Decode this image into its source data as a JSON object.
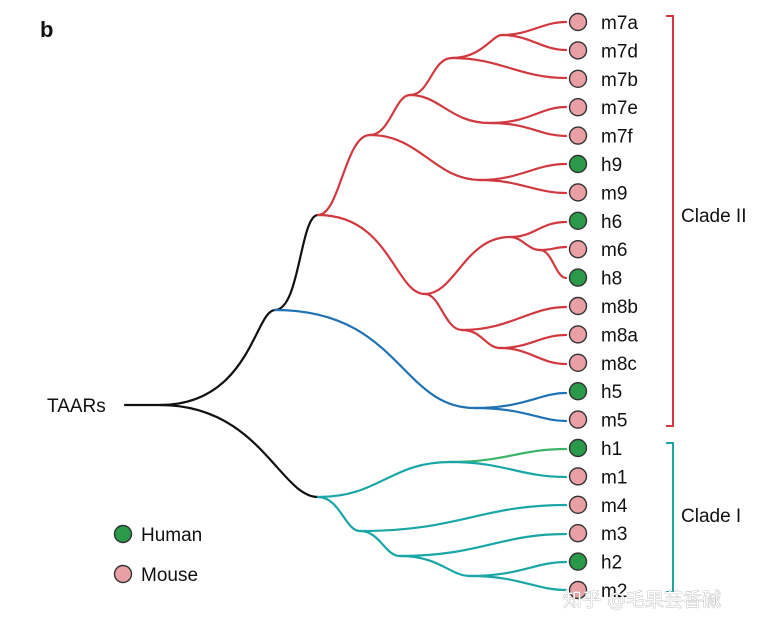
{
  "panel_label": "b",
  "root_label": "TAARs",
  "colors": {
    "trunk": "#111111",
    "clade2": "#d0393f",
    "blue": "#1f72b4",
    "clade1": "#1aa6a6",
    "human_fill": "#2a9a4a",
    "mouse_fill": "#e8a0a4",
    "node_stroke": "#333333",
    "clade2_bracket": "#d0393f",
    "clade1_bracket": "#1aa6a6"
  },
  "leaves": [
    {
      "label": "m7a",
      "species": "mouse"
    },
    {
      "label": "m7d",
      "species": "mouse"
    },
    {
      "label": "m7b",
      "species": "mouse"
    },
    {
      "label": "m7e",
      "species": "mouse"
    },
    {
      "label": "m7f",
      "species": "mouse"
    },
    {
      "label": "h9",
      "species": "human"
    },
    {
      "label": "m9",
      "species": "mouse"
    },
    {
      "label": "h6",
      "species": "human"
    },
    {
      "label": "m6",
      "species": "mouse"
    },
    {
      "label": "h8",
      "species": "human"
    },
    {
      "label": "m8b",
      "species": "mouse"
    },
    {
      "label": "m8a",
      "species": "mouse"
    },
    {
      "label": "m8c",
      "species": "mouse"
    },
    {
      "label": "h5",
      "species": "human"
    },
    {
      "label": "m5",
      "species": "mouse"
    },
    {
      "label": "h1",
      "species": "human"
    },
    {
      "label": "m1",
      "species": "mouse"
    },
    {
      "label": "m4",
      "species": "mouse"
    },
    {
      "label": "m3",
      "species": "mouse"
    },
    {
      "label": "h2",
      "species": "human"
    },
    {
      "label": "m2",
      "species": "mouse"
    }
  ],
  "clades": [
    {
      "label": "Clade II"
    },
    {
      "label": "Clade I"
    }
  ],
  "legend": [
    {
      "label": "Human",
      "species": "human"
    },
    {
      "label": "Mouse",
      "species": "mouse"
    }
  ],
  "watermark": "知乎 @毛果芸香碱"
}
